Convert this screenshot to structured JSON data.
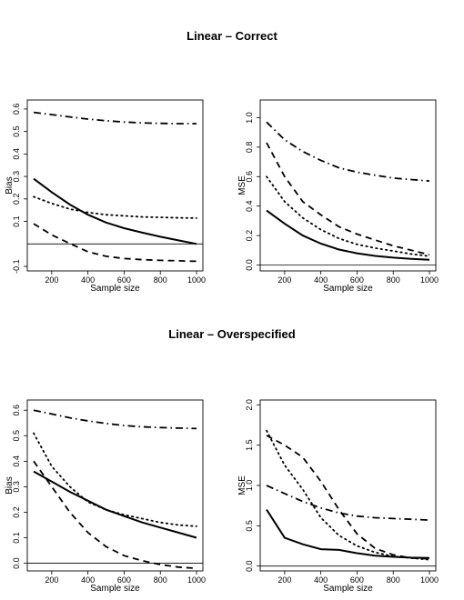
{
  "sections": [
    {
      "title": "Linear – Correct"
    },
    {
      "title": "Linear – Overspecified"
    }
  ],
  "style": {
    "series_colors": "#000000",
    "background": "#ffffff",
    "line_styles": [
      "solid",
      "dashed",
      "dotted",
      "dashdot"
    ]
  },
  "chart_data": [
    {
      "type": "line",
      "title": "",
      "xlabel": "Sample size",
      "ylabel": "Bias",
      "xlim": [
        65,
        1035
      ],
      "ylim": [
        -0.12,
        0.64
      ],
      "xticks": [
        200,
        400,
        600,
        800,
        1000
      ],
      "yticks": [
        -0.1,
        0.1,
        0.2,
        0.3,
        0.4,
        0.5,
        0.6
      ],
      "ytick_labels": [
        "-0.1",
        "0.1",
        "0.2",
        "0.3",
        "0.4",
        "0.5",
        "0.6"
      ],
      "hline": 0,
      "series": [
        {
          "style": "solid",
          "x": [
            100,
            200,
            300,
            400,
            500,
            600,
            700,
            800,
            900,
            1000
          ],
          "y": [
            0.29,
            0.23,
            0.175,
            0.13,
            0.095,
            0.07,
            0.05,
            0.032,
            0.016,
            0.0
          ]
        },
        {
          "style": "dashed",
          "x": [
            100,
            200,
            300,
            400,
            500,
            600,
            700,
            800,
            900,
            1000
          ],
          "y": [
            0.09,
            0.04,
            0.002,
            -0.035,
            -0.055,
            -0.065,
            -0.07,
            -0.073,
            -0.075,
            -0.077
          ]
        },
        {
          "style": "dotted",
          "x": [
            100,
            200,
            300,
            400,
            500,
            600,
            700,
            800,
            900,
            1000
          ],
          "y": [
            0.21,
            0.18,
            0.155,
            0.14,
            0.13,
            0.125,
            0.12,
            0.118,
            0.116,
            0.115
          ]
        },
        {
          "style": "dashdot",
          "x": [
            100,
            200,
            300,
            400,
            500,
            600,
            700,
            800,
            900,
            1000
          ],
          "y": [
            0.585,
            0.575,
            0.565,
            0.555,
            0.548,
            0.542,
            0.538,
            0.536,
            0.535,
            0.535
          ]
        }
      ]
    },
    {
      "type": "line",
      "title": "",
      "xlabel": "Sample size",
      "ylabel": "MSE",
      "xlim": [
        65,
        1035
      ],
      "ylim": [
        -0.04,
        1.12
      ],
      "xticks": [
        200,
        400,
        600,
        800,
        1000
      ],
      "yticks": [
        0.0,
        0.2,
        0.4,
        0.6,
        0.8,
        1.0
      ],
      "ytick_labels": [
        "0.0",
        "0.2",
        "0.4",
        "0.6",
        "0.8",
        "1.0"
      ],
      "hline": 0,
      "series": [
        {
          "style": "solid",
          "x": [
            100,
            200,
            300,
            400,
            500,
            600,
            700,
            800,
            900,
            1000
          ],
          "y": [
            0.37,
            0.28,
            0.2,
            0.145,
            0.105,
            0.08,
            0.062,
            0.05,
            0.042,
            0.035
          ]
        },
        {
          "style": "dashed",
          "x": [
            100,
            200,
            300,
            400,
            500,
            600,
            700,
            800,
            900,
            1000
          ],
          "y": [
            0.83,
            0.6,
            0.43,
            0.34,
            0.26,
            0.21,
            0.17,
            0.13,
            0.1,
            0.07
          ]
        },
        {
          "style": "dotted",
          "x": [
            100,
            200,
            300,
            400,
            500,
            600,
            700,
            800,
            900,
            1000
          ],
          "y": [
            0.6,
            0.43,
            0.32,
            0.24,
            0.18,
            0.14,
            0.115,
            0.095,
            0.075,
            0.06
          ]
        },
        {
          "style": "dashdot",
          "x": [
            100,
            200,
            300,
            400,
            500,
            600,
            700,
            800,
            900,
            1000
          ],
          "y": [
            0.97,
            0.85,
            0.77,
            0.71,
            0.66,
            0.63,
            0.61,
            0.59,
            0.58,
            0.57
          ]
        }
      ]
    },
    {
      "type": "line",
      "title": "",
      "xlabel": "Sample size",
      "ylabel": "Bias",
      "xlim": [
        65,
        1035
      ],
      "ylim": [
        -0.03,
        0.64
      ],
      "xticks": [
        200,
        400,
        600,
        800,
        1000
      ],
      "yticks": [
        0.0,
        0.1,
        0.2,
        0.3,
        0.4,
        0.5,
        0.6
      ],
      "ytick_labels": [
        "0.0",
        "0.1",
        "0.2",
        "0.3",
        "0.4",
        "0.5",
        "0.6"
      ],
      "hline": 0,
      "series": [
        {
          "style": "solid",
          "x": [
            100,
            200,
            300,
            400,
            500,
            600,
            700,
            800,
            900,
            1000
          ],
          "y": [
            0.36,
            0.32,
            0.28,
            0.245,
            0.21,
            0.185,
            0.16,
            0.14,
            0.12,
            0.1
          ]
        },
        {
          "style": "dashed",
          "x": [
            100,
            200,
            300,
            400,
            500,
            600,
            700,
            800,
            900,
            1000
          ],
          "y": [
            0.4,
            0.3,
            0.2,
            0.12,
            0.065,
            0.03,
            0.01,
            -0.005,
            -0.015,
            -0.02
          ]
        },
        {
          "style": "dotted",
          "x": [
            100,
            200,
            300,
            400,
            500,
            600,
            700,
            800,
            900,
            1000
          ],
          "y": [
            0.51,
            0.38,
            0.3,
            0.24,
            0.21,
            0.19,
            0.175,
            0.16,
            0.15,
            0.145
          ]
        },
        {
          "style": "dashdot",
          "x": [
            100,
            200,
            300,
            400,
            500,
            600,
            700,
            800,
            900,
            1000
          ],
          "y": [
            0.6,
            0.585,
            0.57,
            0.558,
            0.548,
            0.54,
            0.535,
            0.532,
            0.53,
            0.528
          ]
        }
      ]
    },
    {
      "type": "line",
      "title": "",
      "xlabel": "Sample size",
      "ylabel": "MSE",
      "xlim": [
        65,
        1035
      ],
      "ylim": [
        -0.06,
        2.06
      ],
      "xticks": [
        200,
        400,
        600,
        800,
        1000
      ],
      "yticks": [
        0.0,
        0.5,
        1.0,
        1.5,
        2.0
      ],
      "ytick_labels": [
        "0.0",
        "0.5",
        "1.0",
        "1.5",
        "2.0"
      ],
      "hline": 0,
      "series": [
        {
          "style": "solid",
          "x": [
            100,
            200,
            300,
            400,
            500,
            600,
            700,
            800,
            900,
            1000
          ],
          "y": [
            0.7,
            0.35,
            0.27,
            0.21,
            0.2,
            0.16,
            0.13,
            0.115,
            0.105,
            0.1
          ]
        },
        {
          "style": "dashed",
          "x": [
            100,
            200,
            300,
            400,
            500,
            600,
            700,
            800,
            900,
            1000
          ],
          "y": [
            1.62,
            1.5,
            1.35,
            1.05,
            0.7,
            0.4,
            0.22,
            0.14,
            0.1,
            0.09
          ]
        },
        {
          "style": "dotted",
          "x": [
            100,
            200,
            300,
            400,
            500,
            600,
            700,
            800,
            900,
            1000
          ],
          "y": [
            1.68,
            1.25,
            0.95,
            0.6,
            0.38,
            0.25,
            0.17,
            0.12,
            0.1,
            0.08
          ]
        },
        {
          "style": "dashdot",
          "x": [
            100,
            200,
            300,
            400,
            500,
            600,
            700,
            800,
            900,
            1000
          ],
          "y": [
            1.0,
            0.9,
            0.8,
            0.72,
            0.66,
            0.62,
            0.6,
            0.59,
            0.58,
            0.57
          ]
        }
      ]
    }
  ]
}
